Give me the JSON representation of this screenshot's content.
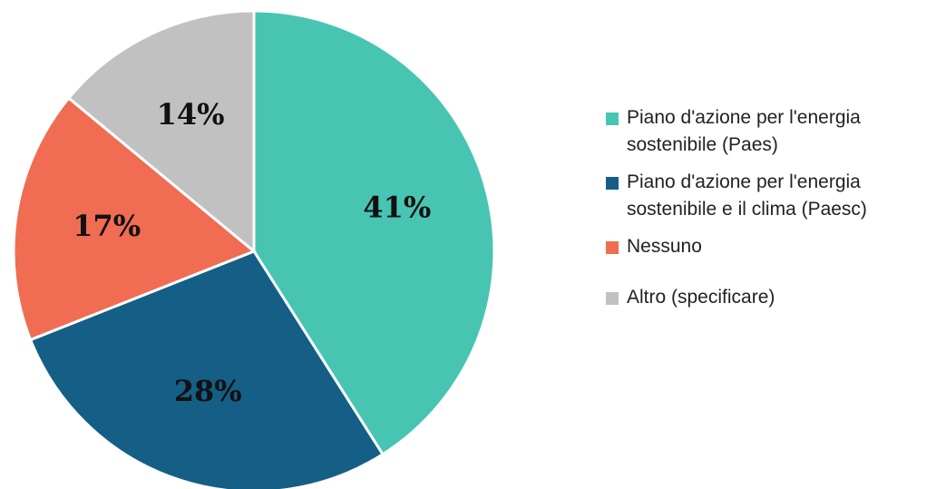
{
  "chart_data": {
    "type": "pie",
    "categories": [
      "Piano d'azione per l'energia sostenibile (Paes)",
      "Piano d'azione per l'energia sostenibile e il clima (Paesc)",
      "Nessuno",
      "Altro (specificare)"
    ],
    "values": [
      41,
      28,
      17,
      14
    ],
    "value_labels": [
      "41%",
      "28%",
      "17%",
      "14%"
    ],
    "colors": [
      "#48c5b2",
      "#155f86",
      "#f06c52",
      "#c1c1c1"
    ]
  }
}
